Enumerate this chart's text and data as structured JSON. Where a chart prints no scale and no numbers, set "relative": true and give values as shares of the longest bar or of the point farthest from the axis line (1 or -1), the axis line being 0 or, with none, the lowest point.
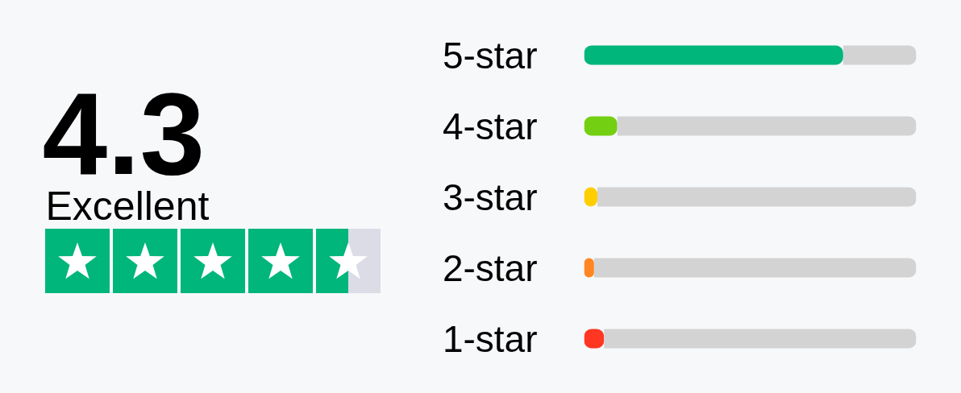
{
  "chart_data": [
    {
      "type": "other",
      "title": "4.3",
      "annotations": [
        "Excellent"
      ]
    },
    {
      "type": "bar",
      "orientation": "horizontal",
      "stacked": true,
      "relative": true,
      "categories": [
        "5-star",
        "4-star",
        "3-star",
        "2-star",
        "1-star"
      ],
      "series": [
        {
          "colors": [
            "#00b67a",
            "#73cf11",
            "#ffce00",
            "#ff8622",
            "#ff3722"
          ],
          "values": [
            0.78,
            0.1,
            0.04,
            0.03,
            0.06
          ]
        },
        {
          "color": "#d3d3d3",
          "values": [
            0.22,
            0.9,
            0.96,
            0.97,
            0.94
          ]
        }
      ]
    }
  ]
}
